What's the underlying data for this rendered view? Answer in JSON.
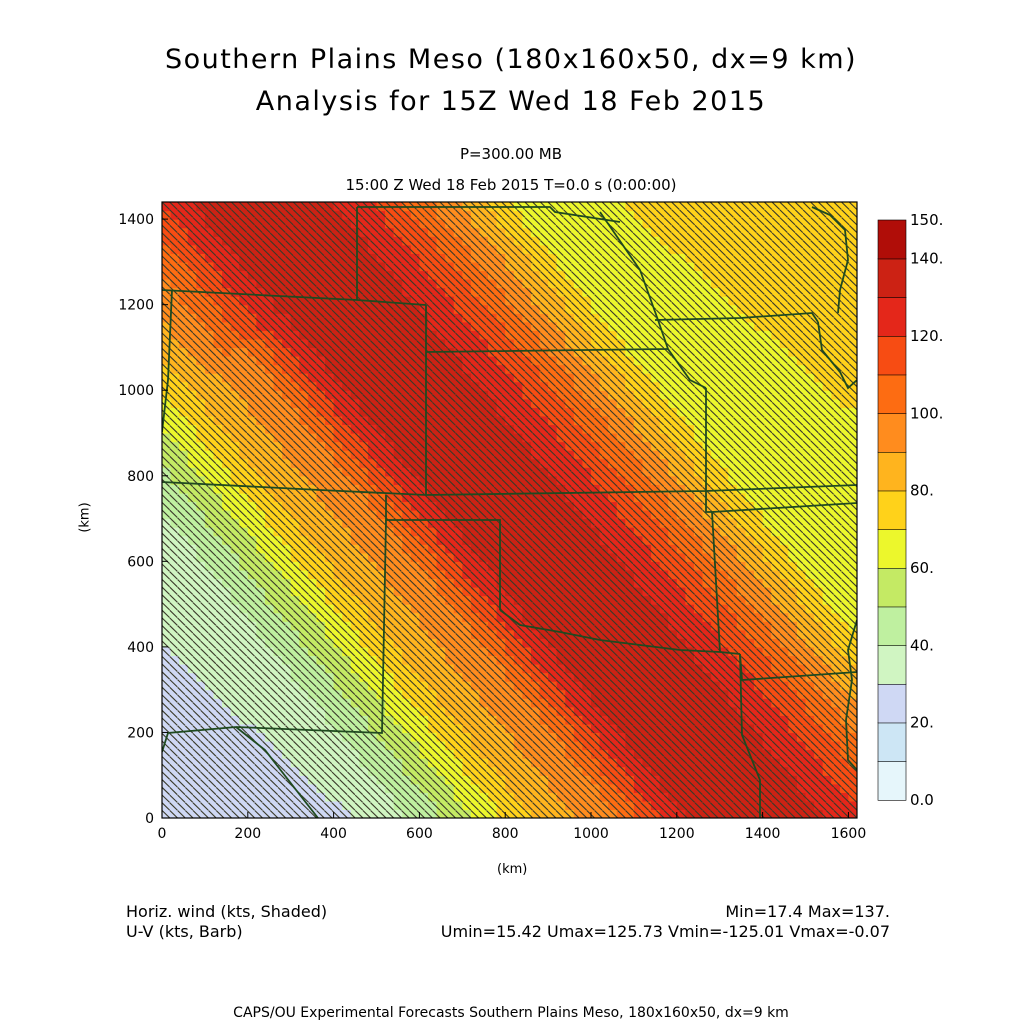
{
  "header": {
    "title_line1": "Southern Plains Meso (180x160x50, dx=9 km)",
    "title_line2": "Analysis for 15Z Wed 18 Feb 2015",
    "level": "P=300.00 MB",
    "time": "15:00 Z Wed 18 Feb 2015    T=0.0 s (0:00:00)"
  },
  "chart_data": {
    "type": "heatmap",
    "xlabel": "(km)",
    "ylabel": "(km)",
    "xlim": [
      0,
      1620
    ],
    "ylim": [
      0,
      1440
    ],
    "x_ticks": [
      0,
      200,
      400,
      600,
      800,
      1000,
      1200,
      1400,
      1600
    ],
    "y_ticks": [
      0,
      200,
      400,
      600,
      800,
      1000,
      1200,
      1400
    ],
    "colorbar": {
      "levels": [
        0,
        10,
        20,
        30,
        40,
        50,
        60,
        70,
        80,
        90,
        100,
        110,
        120,
        130,
        140,
        150
      ],
      "labels": [
        "0.0",
        "20.",
        "40.",
        "60.",
        "80.",
        "100.",
        "120.",
        "140.",
        "150."
      ],
      "label_values": [
        0,
        20,
        40,
        60,
        80,
        100,
        120,
        140,
        150
      ],
      "colors": [
        "#e6f6fb",
        "#cde6f5",
        "#cfd8f4",
        "#d0f5c2",
        "#bff0a0",
        "#c4ea64",
        "#ecf72c",
        "#ffd21a",
        "#ffb41e",
        "#ff8c1e",
        "#fd6c12",
        "#f74c13",
        "#e4271a",
        "#cc2214",
        "#b00d08"
      ]
    },
    "field_stats": {
      "min": 17.4,
      "max": 137,
      "umin": 15.42,
      "umax": 125.73,
      "vmin": -125.01,
      "vmax": -0.07
    },
    "overlay": "U-V wind barbs",
    "borders": "US state boundaries"
  },
  "legend": {
    "shaded_var": "Horiz. wind (kts, Shaded)",
    "barb_var": "U-V (kts, Barb)",
    "min_max": "Min=17.4 Max=137.",
    "uv_stats": "Umin=15.42 Umax=125.73 Vmin=-125.01 Vmax=-0.07"
  },
  "footer": "CAPS/OU Experimental Forecasts  Southern Plains Meso, 180x160x50, dx=9 km",
  "colors": {
    "border": "#1f4a1f",
    "barb": "#3a3a2a"
  }
}
